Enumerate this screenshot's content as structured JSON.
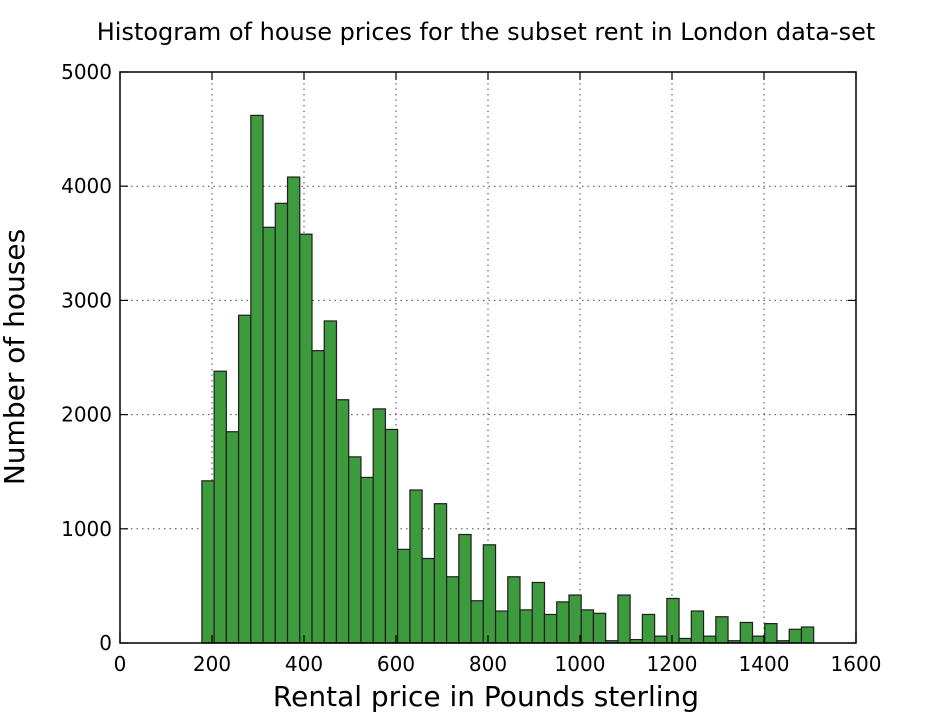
{
  "chart_data": {
    "type": "bar",
    "title": "Histogram of house prices for the subset rent in  London data-set",
    "xlabel": "Rental price in Pounds sterling",
    "ylabel": "Number of houses",
    "xlim": [
      0,
      1600
    ],
    "ylim": [
      0,
      5000
    ],
    "xticks": [
      0,
      200,
      400,
      600,
      800,
      1000,
      1200,
      1400,
      1600
    ],
    "yticks": [
      0,
      1000,
      2000,
      3000,
      4000,
      5000
    ],
    "grid": true,
    "bar_color": "#3d9a3d",
    "edge_color": "#1f1f1f",
    "bin_width": 26.6,
    "bin_starts": [
      178,
      204.6,
      231.2,
      257.8,
      284.4,
      311,
      337.6,
      364.2,
      390.8,
      417.4,
      444,
      470.6,
      497.2,
      523.8,
      550.4,
      577,
      603.6,
      630.2,
      656.8,
      683.4,
      710,
      736.6,
      763.2,
      789.8,
      816.4,
      843,
      869.6,
      896.2,
      922.8,
      949.4,
      976,
      1002.6,
      1029.2,
      1055.8,
      1082.4,
      1109,
      1135.6,
      1162.2,
      1188.8,
      1215.4,
      1242,
      1268.6,
      1295.2,
      1321.8,
      1348.4,
      1375,
      1401.6,
      1428.2,
      1454.8,
      1481.4
    ],
    "values": [
      1420,
      2380,
      1850,
      2870,
      4620,
      3640,
      3850,
      4080,
      3580,
      2560,
      2820,
      2130,
      1630,
      1450,
      2050,
      1870,
      820,
      1340,
      740,
      1220,
      580,
      950,
      370,
      860,
      280,
      580,
      290,
      530,
      250,
      360,
      420,
      290,
      260,
      20,
      420,
      30,
      250,
      60,
      390,
      40,
      280,
      60,
      230,
      20,
      180,
      60,
      170,
      20,
      120,
      140
    ]
  }
}
